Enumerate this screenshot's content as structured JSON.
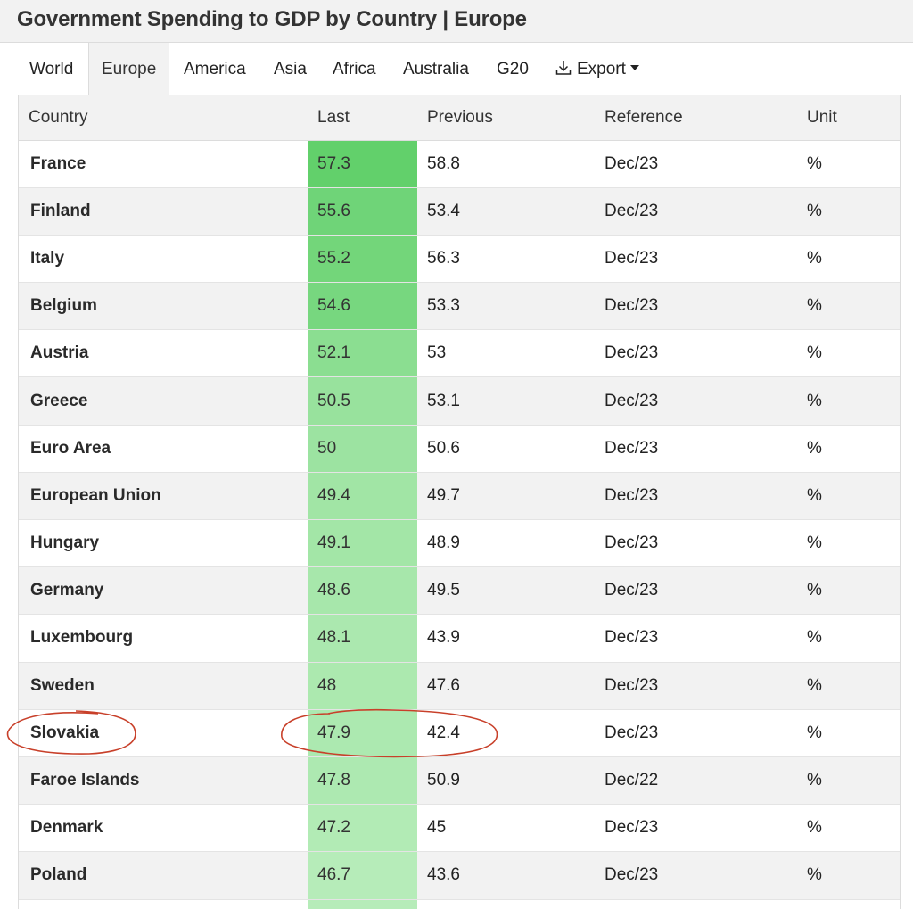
{
  "title": "Government Spending to GDP by Country | Europe",
  "tabs": [
    {
      "label": "World"
    },
    {
      "label": "Europe",
      "active": true
    },
    {
      "label": "America"
    },
    {
      "label": "Asia"
    },
    {
      "label": "Africa"
    },
    {
      "label": "Australia"
    },
    {
      "label": "G20"
    }
  ],
  "export": {
    "label": "Export",
    "icon": "download-icon"
  },
  "table": {
    "headers": {
      "country": "Country",
      "last": "Last",
      "previous": "Previous",
      "reference": "Reference",
      "unit": "Unit"
    },
    "rows": [
      {
        "country": "France",
        "last": "57.3",
        "previous": "58.8",
        "reference": "Dec/23",
        "unit": "%"
      },
      {
        "country": "Finland",
        "last": "55.6",
        "previous": "53.4",
        "reference": "Dec/23",
        "unit": "%"
      },
      {
        "country": "Italy",
        "last": "55.2",
        "previous": "56.3",
        "reference": "Dec/23",
        "unit": "%"
      },
      {
        "country": "Belgium",
        "last": "54.6",
        "previous": "53.3",
        "reference": "Dec/23",
        "unit": "%"
      },
      {
        "country": "Austria",
        "last": "52.1",
        "previous": "53",
        "reference": "Dec/23",
        "unit": "%"
      },
      {
        "country": "Greece",
        "last": "50.5",
        "previous": "53.1",
        "reference": "Dec/23",
        "unit": "%"
      },
      {
        "country": "Euro Area",
        "last": "50",
        "previous": "50.6",
        "reference": "Dec/23",
        "unit": "%"
      },
      {
        "country": "European Union",
        "last": "49.4",
        "previous": "49.7",
        "reference": "Dec/23",
        "unit": "%"
      },
      {
        "country": "Hungary",
        "last": "49.1",
        "previous": "48.9",
        "reference": "Dec/23",
        "unit": "%"
      },
      {
        "country": "Germany",
        "last": "48.6",
        "previous": "49.5",
        "reference": "Dec/23",
        "unit": "%"
      },
      {
        "country": "Luxembourg",
        "last": "48.1",
        "previous": "43.9",
        "reference": "Dec/23",
        "unit": "%"
      },
      {
        "country": "Sweden",
        "last": "48",
        "previous": "47.6",
        "reference": "Dec/23",
        "unit": "%"
      },
      {
        "country": "Slovakia",
        "last": "47.9",
        "previous": "42.4",
        "reference": "Dec/23",
        "unit": "%",
        "circled": true
      },
      {
        "country": "Faroe Islands",
        "last": "47.8",
        "previous": "50.9",
        "reference": "Dec/22",
        "unit": "%"
      },
      {
        "country": "Denmark",
        "last": "47.2",
        "previous": "45",
        "reference": "Dec/23",
        "unit": "%"
      },
      {
        "country": "Poland",
        "last": "46.7",
        "previous": "43.6",
        "reference": "Dec/23",
        "unit": "%"
      },
      {
        "country": "",
        "last": "",
        "previous": "",
        "reference": "",
        "unit": ""
      }
    ]
  },
  "colors": {
    "last_max": "#62d06b",
    "last_min": "#b6ecb9",
    "annotation": "#c8402a"
  }
}
